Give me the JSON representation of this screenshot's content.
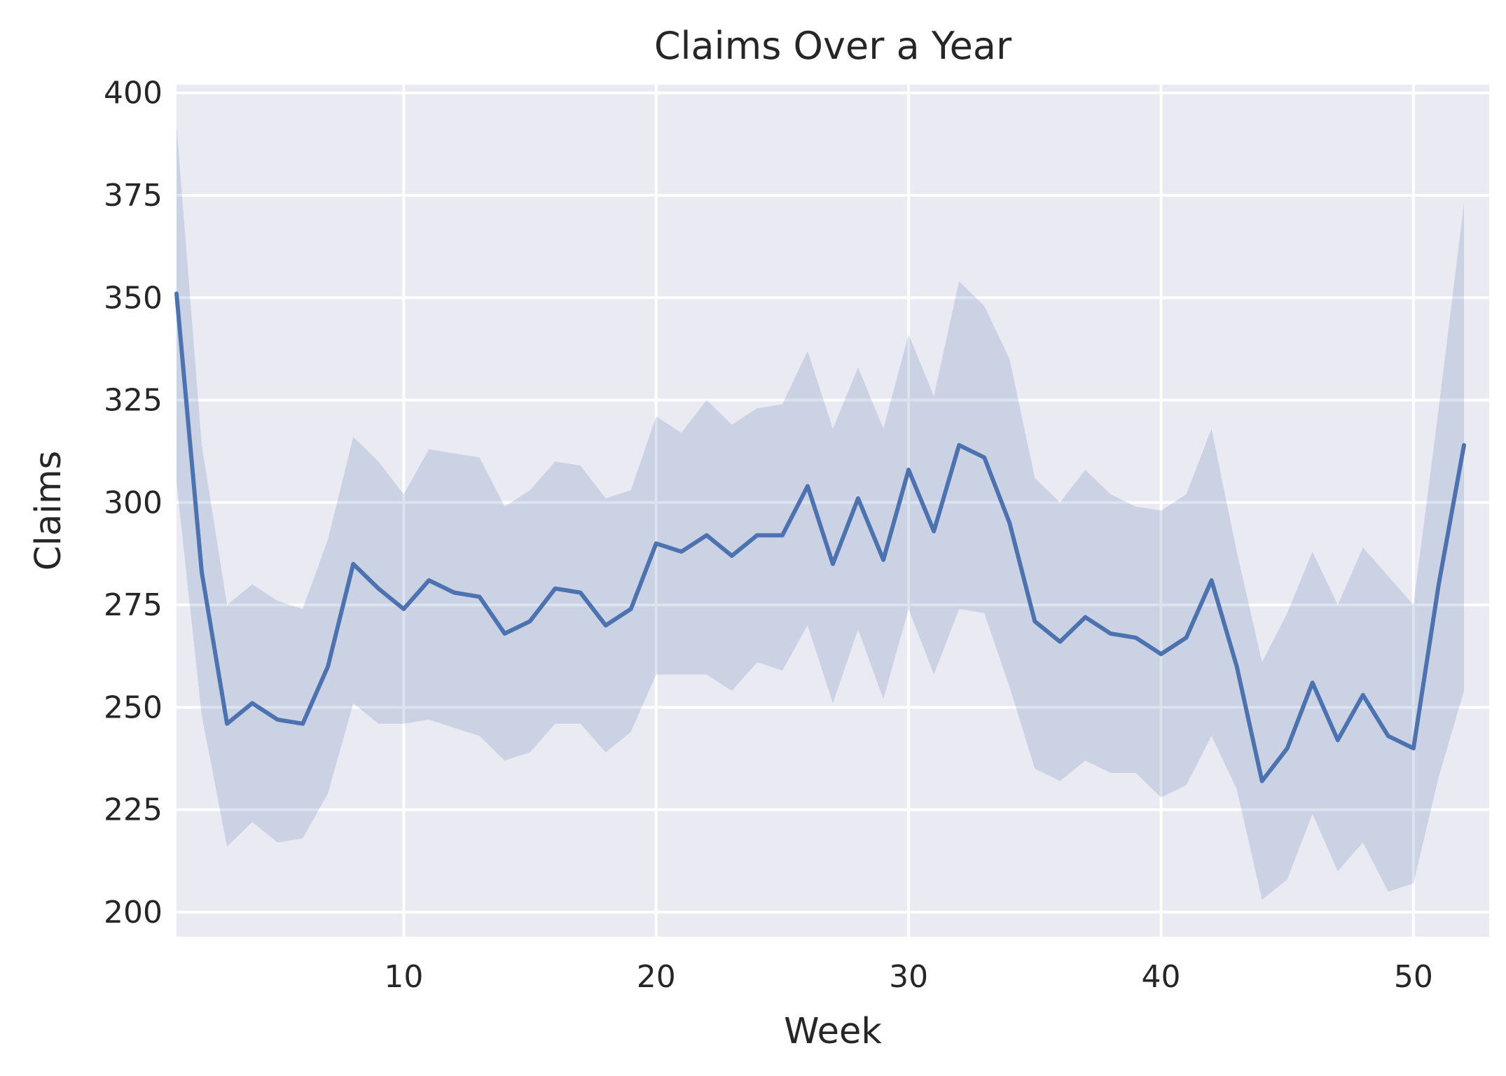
{
  "chart_data": {
    "type": "line",
    "title": "Claims Over a Year",
    "xlabel": "Week",
    "ylabel": "Claims",
    "xlim": [
      1,
      53
    ],
    "ylim": [
      194,
      402
    ],
    "xticks": [
      10,
      20,
      30,
      40,
      50
    ],
    "yticks": [
      200,
      225,
      250,
      275,
      300,
      325,
      350,
      375,
      400
    ],
    "grid": true,
    "legend": "none",
    "colors": {
      "plot_background": "#eaeaf2",
      "grid": "#ffffff",
      "line": "#4c72b0",
      "band": "#4c72b0"
    },
    "series": [
      {
        "x": [
          1,
          2,
          3,
          4,
          5,
          6,
          7,
          8,
          9,
          10,
          11,
          12,
          13,
          14,
          15,
          16,
          17,
          18,
          19,
          20,
          21,
          22,
          23,
          24,
          25,
          26,
          27,
          28,
          29,
          30,
          31,
          32,
          33,
          34,
          35,
          36,
          37,
          38,
          39,
          40,
          41,
          42,
          43,
          44,
          45,
          46,
          47,
          48,
          49,
          50,
          51,
          52
        ],
        "values": [
          351,
          283,
          246,
          251,
          247,
          246,
          260,
          285,
          279,
          274,
          281,
          278,
          277,
          268,
          271,
          279,
          278,
          270,
          274,
          290,
          288,
          292,
          287,
          292,
          292,
          304,
          285,
          301,
          286,
          308,
          293,
          314,
          311,
          295,
          271,
          266,
          272,
          268,
          267,
          263,
          267,
          281,
          260,
          232,
          240,
          256,
          242,
          253,
          243,
          240,
          280,
          314
        ],
        "ci_lower": [
          305,
          248,
          216,
          222,
          217,
          218,
          229,
          251,
          246,
          246,
          247,
          245,
          243,
          237,
          239,
          246,
          246,
          239,
          244,
          258,
          258,
          258,
          254,
          261,
          259,
          270,
          251,
          269,
          252,
          274,
          258,
          274,
          273,
          255,
          235,
          232,
          237,
          234,
          234,
          228,
          231,
          243,
          230,
          203,
          208,
          224,
          210,
          217,
          205,
          207,
          233,
          254
        ],
        "ci_upper": [
          392,
          314,
          275,
          280,
          276,
          274,
          291,
          316,
          310,
          302,
          313,
          312,
          311,
          299,
          303,
          310,
          309,
          301,
          303,
          321,
          317,
          325,
          319,
          323,
          324,
          337,
          318,
          333,
          318,
          341,
          326,
          354,
          348,
          335,
          306,
          300,
          308,
          302,
          299,
          298,
          302,
          318,
          288,
          261,
          273,
          288,
          275,
          289,
          282,
          275,
          323,
          373
        ]
      }
    ]
  }
}
